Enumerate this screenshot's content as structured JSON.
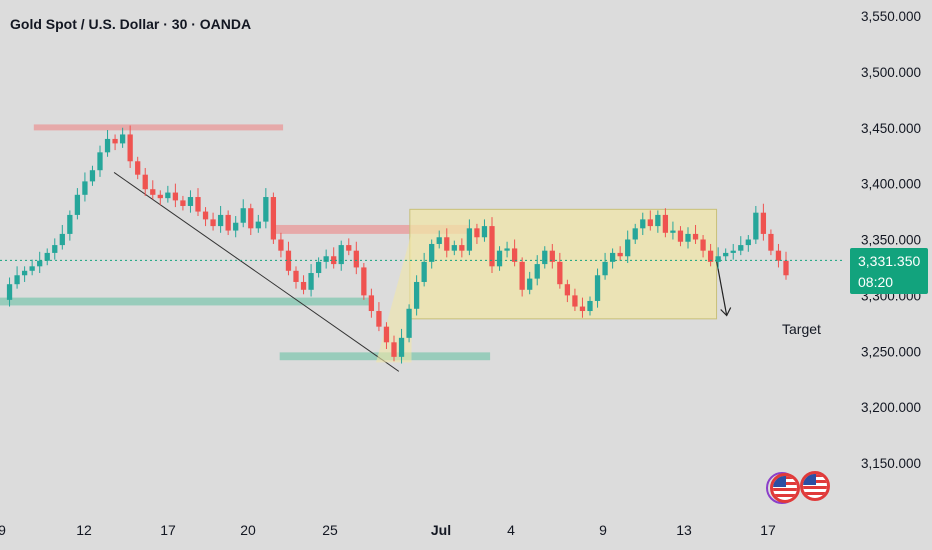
{
  "header": {
    "title": "Gold Spot / U.S. Dollar · 30 · OANDA"
  },
  "price_tag": {
    "price": "3,331.350",
    "countdown": "08:20"
  },
  "annotation": {
    "target_label": "Target"
  },
  "colors": {
    "up": "#26a69a",
    "down": "#ef5350",
    "resistance_zone": "#e8a0a0",
    "support_zone": "#8cc9b5",
    "range_box": "#f0e6a8",
    "price_line": "#12a37d"
  },
  "chart_data": {
    "type": "line",
    "title": "Gold Spot / U.S. Dollar · 30 · OANDA",
    "xlabel": "",
    "ylabel": "",
    "ylim": [
      3120,
      3570
    ],
    "y_ticks": [
      3150,
      3200,
      3250,
      3300,
      3350,
      3400,
      3450,
      3500,
      3550
    ],
    "y_tick_labels": [
      "3,150.000",
      "3,200.000",
      "3,250.000",
      "3,300.000",
      "3,350.000",
      "3,400.000",
      "3,450.000",
      "3,500.000",
      "3,550.000"
    ],
    "x_ticks": [
      "9",
      "12",
      "17",
      "20",
      "25",
      "Jul",
      "4",
      "9",
      "13",
      "17"
    ],
    "x_tick_bold": [
      "Jul"
    ],
    "series": [
      {
        "values": [
          3296,
          3310,
          3318,
          3322,
          3326,
          3331,
          3338,
          3345,
          3355,
          3372,
          3390,
          3402,
          3412,
          3428,
          3440,
          3436,
          3444,
          3420,
          3408,
          3395,
          3390,
          3387,
          3392,
          3385,
          3380,
          3388,
          3375,
          3368,
          3362,
          3372,
          3358,
          3365,
          3378,
          3360,
          3366,
          3388,
          3350,
          3340,
          3322,
          3312,
          3305,
          3320,
          3330,
          3335,
          3328,
          3345,
          3340,
          3325,
          3300,
          3286,
          3272,
          3258,
          3245,
          3262,
          3288,
          3312,
          3330,
          3346,
          3352,
          3340,
          3345,
          3340,
          3360,
          3352,
          3362,
          3326,
          3340,
          3342,
          3330,
          3305,
          3315,
          3328,
          3340,
          3330,
          3310,
          3300,
          3290,
          3286,
          3295,
          3318,
          3330,
          3338,
          3335,
          3350,
          3360,
          3368,
          3362,
          3372,
          3356,
          3358,
          3348,
          3355,
          3350,
          3340,
          3330,
          3335,
          3338,
          3340,
          3345,
          3350,
          3374,
          3355,
          3340,
          3331,
          3318
        ]
      }
    ],
    "last_price": 3331.35,
    "zones": [
      {
        "kind": "resistance",
        "from": 3448,
        "to": 3453,
        "x_start": 0.04,
        "x_end": 0.335
      },
      {
        "kind": "resistance",
        "from": 3355,
        "to": 3363,
        "x_start": 0.322,
        "x_end": 0.555
      },
      {
        "kind": "support",
        "from": 3291,
        "to": 3298,
        "x_start": 0.0,
        "x_end": 0.44
      },
      {
        "kind": "support",
        "from": 3242,
        "to": 3249,
        "x_start": 0.331,
        "x_end": 0.58
      }
    ],
    "range_box": {
      "from": 3279,
      "to": 3377,
      "x_start": 0.485,
      "x_end": 0.848
    },
    "trendline": {
      "from": [
        0.135,
        3410
      ],
      "to": [
        0.472,
        3232
      ]
    },
    "target_arrow": {
      "from": [
        0.848,
        3331
      ],
      "to": [
        0.86,
        3282
      ]
    },
    "grid": false,
    "legend": "none"
  }
}
